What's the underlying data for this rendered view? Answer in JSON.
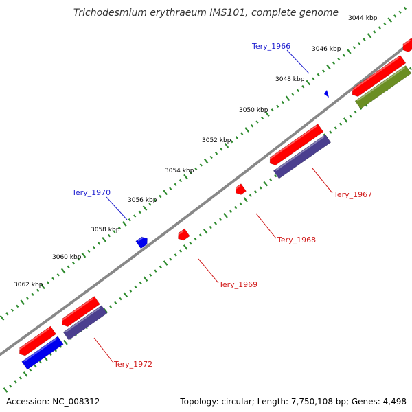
{
  "title": "Trichodesmium erythraeum IMS101, complete genome",
  "footer": {
    "accession": "Accession: NC_008312",
    "summary": "Topology: circular; Length: 7,750,108 bp; Genes: 4,498"
  },
  "colors": {
    "backbone": "#888888",
    "ticks": "#2e8b2e",
    "label_plus": "#1f1fcf",
    "label_minus": "#d11a1a",
    "cds_red": "#ff0000",
    "cds_dark_purple": "#4b3f8f",
    "cds_navy": "#1a1a6e",
    "cds_olive": "#6b8e23",
    "cds_blue": "#0000ee"
  },
  "tick_labels": [
    "3044 kbp",
    "3046 kbp",
    "3048 kbp",
    "3050 kbp",
    "3052 kbp",
    "3054 kbp",
    "3056 kbp",
    "3058 kbp",
    "3060 kbp",
    "3062 kbp"
  ],
  "gene_labels": [
    {
      "text": "Tery_1966",
      "strand": "plus"
    },
    {
      "text": "Tery_1970",
      "strand": "plus"
    },
    {
      "text": "Tery_1967",
      "strand": "minus"
    },
    {
      "text": "Tery_1968",
      "strand": "minus"
    },
    {
      "text": "Tery_1969",
      "strand": "minus"
    },
    {
      "text": "Tery_1972",
      "strand": "minus"
    }
  ]
}
